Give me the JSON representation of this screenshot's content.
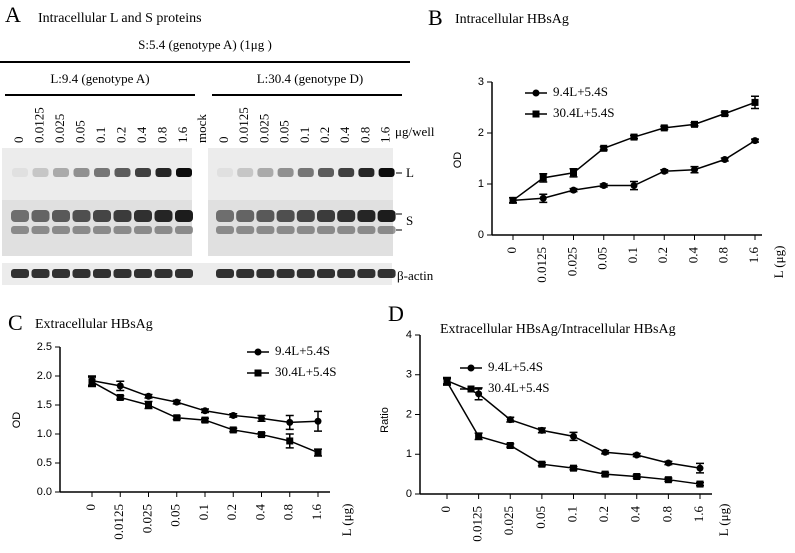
{
  "panel_a": {
    "panel": "A",
    "title": "Intracellular L and S proteins",
    "header": "S:5.4  (genotype A) (1μg )",
    "group_left": "L:9.4 (genotype A)",
    "group_right": "L:30.4 (genotype D)",
    "lanes_left": [
      "0",
      "0.0125",
      "0.025",
      "0.05",
      "0.1",
      "0.2",
      "0.4",
      "0.8",
      "1.6"
    ],
    "mock": "mock",
    "lanes_right": [
      "0",
      "0.0125",
      "0.025",
      "0.05",
      "0.1",
      "0.2",
      "0.4",
      "0.8",
      "1.6"
    ],
    "unit": "μg/well",
    "band_l": "L",
    "band_s": "S",
    "loading": "β-actin"
  },
  "chart_data": [
    {
      "type": "line",
      "panel": "B",
      "title": "Intracellular  HBsAg",
      "y_label": "OD",
      "x_label": "L (μg)",
      "categories": [
        "0",
        "0.0125",
        "0.025",
        "0.05",
        "0.1",
        "0.2",
        "0.4",
        "0.8",
        "1.6"
      ],
      "ylim": [
        0,
        3
      ],
      "yticks": [
        0,
        1,
        2,
        3
      ],
      "series": [
        {
          "name": "9.4L+5.4S",
          "color": "#000000",
          "marker": "circle",
          "values": [
            0.68,
            0.72,
            0.88,
            0.97,
            0.97,
            1.25,
            1.28,
            1.48,
            1.85
          ],
          "errors": [
            0.05,
            0.08,
            0.03,
            0.03,
            0.08,
            0.03,
            0.06,
            0.03,
            0.03
          ]
        },
        {
          "name": "30.4L+5.4S",
          "color": "#000000",
          "marker": "square",
          "values": [
            0.68,
            1.12,
            1.22,
            1.7,
            1.92,
            2.1,
            2.17,
            2.38,
            2.6
          ],
          "errors": [
            0.05,
            0.08,
            0.08,
            0.03,
            0.03,
            0.03,
            0.03,
            0.03,
            0.12
          ]
        }
      ]
    },
    {
      "type": "line",
      "panel": "C",
      "title": "Extracellular  HBsAg",
      "y_label": "OD",
      "x_label": "L (μg)",
      "categories": [
        "0",
        "0.0125",
        "0.025",
        "0.05",
        "0.1",
        "0.2",
        "0.4",
        "0.8",
        "1.6"
      ],
      "ylim": [
        0,
        2.5
      ],
      "yticks": [
        {
          "value": 0,
          "label": "0.0"
        },
        0.5,
        {
          "value": 1,
          "label": "1.0"
        },
        1.5,
        {
          "value": 2,
          "label": "2.0"
        },
        2.5
      ],
      "series": [
        {
          "name": "9.4L+5.4S",
          "color": "#000000",
          "marker": "circle",
          "values": [
            1.92,
            1.83,
            1.65,
            1.55,
            1.4,
            1.32,
            1.27,
            1.2,
            1.22
          ],
          "errors": [
            0.08,
            0.08,
            0.03,
            0.03,
            0.03,
            0.03,
            0.05,
            0.12,
            0.17
          ]
        },
        {
          "name": "30.4L+5.4S",
          "color": "#000000",
          "marker": "square",
          "values": [
            1.9,
            1.63,
            1.5,
            1.28,
            1.24,
            1.07,
            0.99,
            0.88,
            0.68
          ],
          "errors": [
            0.08,
            0.03,
            0.06,
            0.03,
            0.03,
            0.03,
            0.03,
            0.12,
            0.06
          ]
        }
      ]
    },
    {
      "type": "line",
      "panel": "D",
      "title": "Extracellular  HBsAg/Intracellular HBsAg",
      "y_label": "Ratio",
      "x_label": "L (μg)",
      "categories": [
        "0",
        "0.0125",
        "0.025",
        "0.05",
        "0.1",
        "0.2",
        "0.4",
        "0.8",
        "1.6"
      ],
      "ylim": [
        0,
        4
      ],
      "yticks": [
        0,
        1,
        2,
        3,
        4
      ],
      "series": [
        {
          "name": "9.4L+5.4S",
          "color": "#000000",
          "marker": "circle",
          "values": [
            2.85,
            2.52,
            1.87,
            1.6,
            1.45,
            1.05,
            0.98,
            0.78,
            0.65
          ],
          "errors": [
            0.08,
            0.15,
            0.06,
            0.06,
            0.1,
            0.04,
            0.04,
            0.04,
            0.12
          ]
        },
        {
          "name": "30.4L+5.4S",
          "color": "#000000",
          "marker": "square",
          "values": [
            2.82,
            1.45,
            1.22,
            0.75,
            0.65,
            0.5,
            0.44,
            0.36,
            0.25
          ],
          "errors": [
            0.08,
            0.08,
            0.04,
            0.04,
            0.04,
            0.04,
            0.04,
            0.04,
            0.04
          ]
        }
      ]
    }
  ]
}
